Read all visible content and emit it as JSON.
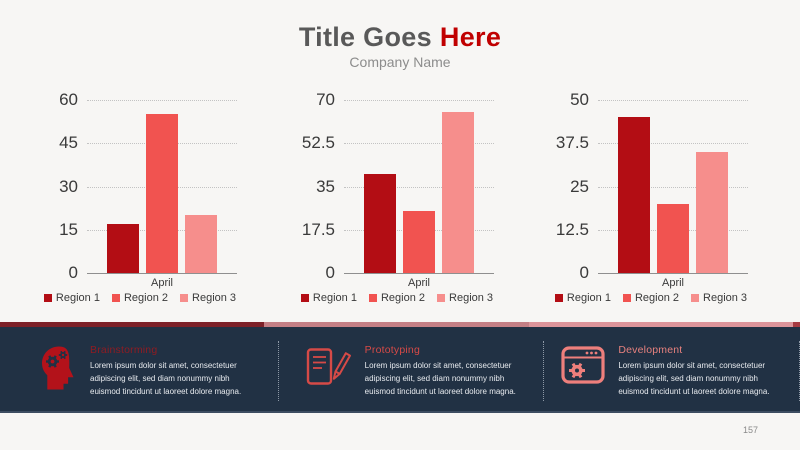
{
  "slide": {
    "background": "#f7f6f4",
    "page_number": "157"
  },
  "header": {
    "title": {
      "primary": "Title Goes",
      "accent": "Here"
    },
    "subtitle": "Company Name",
    "colors": {
      "primary": "#595959",
      "accent": "#c00000",
      "subtitle": "#8c8c8c"
    }
  },
  "chart_data": [
    {
      "type": "bar",
      "categories": [
        "April"
      ],
      "series": [
        {
          "name": "Region 1",
          "values": [
            17
          ],
          "color": "#b30d14"
        },
        {
          "name": "Region 2",
          "values": [
            55
          ],
          "color": "#f15350"
        },
        {
          "name": "Region 3",
          "values": [
            20
          ],
          "color": "#f68e8c"
        }
      ],
      "ylim": [
        0,
        60
      ],
      "yticks": [
        "60",
        "45",
        "30",
        "15",
        "0"
      ],
      "grid": "horizontal-dotted",
      "legend_position": "bottom"
    },
    {
      "type": "bar",
      "categories": [
        "April"
      ],
      "series": [
        {
          "name": "Region 1",
          "values": [
            40
          ],
          "color": "#b30d14"
        },
        {
          "name": "Region 2",
          "values": [
            25
          ],
          "color": "#f15350"
        },
        {
          "name": "Region 3",
          "values": [
            65
          ],
          "color": "#f68e8c"
        }
      ],
      "ylim": [
        0,
        70
      ],
      "yticks": [
        "70",
        "52.5",
        "35",
        "17.5",
        "0"
      ],
      "grid": "horizontal-dotted",
      "legend_position": "bottom"
    },
    {
      "type": "bar",
      "categories": [
        "April"
      ],
      "series": [
        {
          "name": "Region 1",
          "values": [
            45
          ],
          "color": "#b30d14"
        },
        {
          "name": "Region 2",
          "values": [
            20
          ],
          "color": "#f15350"
        },
        {
          "name": "Region 3",
          "values": [
            35
          ],
          "color": "#f68e8c"
        }
      ],
      "ylim": [
        0,
        50
      ],
      "yticks": [
        "50",
        "37.5",
        "25",
        "12.5",
        "0"
      ],
      "grid": "horizontal-dotted",
      "legend_position": "bottom"
    }
  ],
  "footer": {
    "background": "#213144",
    "accent_strip": [
      "#7d2028",
      "#c47f85",
      "#dc949a",
      "#a63b42"
    ],
    "text_color": "#e8ebef",
    "items": [
      {
        "icon": "brainstorming-icon",
        "title": "Brainstorming",
        "title_color": "#8e1c23",
        "text": "Lorem ipsum dolor sit amet, consectetuer adipiscing elit, sed diam nonummy nibh euismod tincidunt ut laoreet dolore magna."
      },
      {
        "icon": "prototyping-icon",
        "title": "Prototyping",
        "title_color": "#d64a47",
        "text": "Lorem ipsum dolor sit amet, consectetuer adipiscing elit, sed diam nonummy nibh euismod tincidunt ut laoreet dolore magna."
      },
      {
        "icon": "development-icon",
        "title": "Development",
        "title_color": "#e7817e",
        "text": "Lorem ipsum dolor sit amet, consectetuer adipiscing elit, sed diam nonummy nibh euismod tincidunt ut laoreet dolore magna."
      }
    ]
  }
}
